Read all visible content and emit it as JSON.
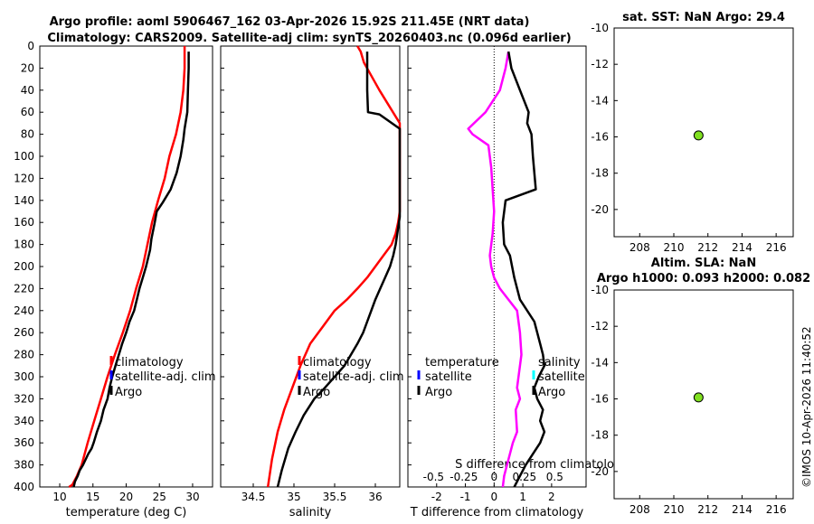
{
  "title_line1": "Argo profile: aoml 5906467_162 03-Apr-2026 15.92S 211.45E (NRT data)",
  "title_line2": "Climatology: CARS2009. Satellite-adj clim: synTS_20260403.nc (0.096d earlier)",
  "timestamp": "©IMOS 10-Apr-2026 11:40:52",
  "colors": {
    "climatology": "#ff0000",
    "satellite": "#0000ff",
    "argo": "#000000",
    "t_diff": "#ff00ff",
    "s_diff": "#00ffff",
    "marker": "#80e020"
  },
  "chart_data": [
    {
      "id": "temperature",
      "type": "line",
      "xlabel": "temperature (deg C)",
      "ylabel": "",
      "xlim": [
        7,
        33
      ],
      "ylim": [
        400,
        0
      ],
      "xticks": [
        10,
        15,
        20,
        25,
        30
      ],
      "yticks": [
        0,
        20,
        40,
        60,
        80,
        100,
        120,
        140,
        160,
        180,
        200,
        220,
        240,
        260,
        280,
        300,
        320,
        340,
        360,
        380,
        400
      ],
      "legend": [
        "climatology",
        "satellite-adj. clim",
        "Argo"
      ],
      "series": [
        {
          "name": "climatology",
          "color": "#ff0000",
          "x": [
            28.8,
            28.8,
            28.6,
            28.2,
            27.5,
            26.5,
            25.8,
            24.8,
            23.9,
            23.2,
            22.5,
            21.5,
            20.6,
            19.5,
            18.3,
            17.2,
            16.2,
            15.2,
            14.2,
            13.3,
            12.6,
            11.9,
            11.4
          ],
          "y": [
            0,
            20,
            40,
            60,
            80,
            100,
            120,
            140,
            160,
            180,
            200,
            220,
            240,
            260,
            280,
            300,
            320,
            340,
            360,
            380,
            390,
            398,
            400
          ]
        },
        {
          "name": "Argo",
          "color": "#000000",
          "x": [
            29.4,
            29.4,
            29.3,
            29.2,
            28.8,
            28.6,
            28.2,
            27.6,
            26.7,
            25.5,
            24.6,
            24.3,
            23.8,
            23.6,
            23.0,
            22.5,
            22.0,
            21.6,
            21.2,
            20.5,
            20.0,
            19.4,
            18.9,
            18.4,
            17.9,
            17.5,
            17.2,
            16.6,
            16.2,
            15.6,
            15.1,
            14.8,
            14.3,
            13.9,
            13.5,
            13.0,
            12.7,
            12.3,
            12.1
          ],
          "y": [
            5,
            20,
            40,
            60,
            75,
            85,
            100,
            115,
            130,
            142,
            150,
            160,
            175,
            185,
            200,
            210,
            220,
            230,
            240,
            250,
            260,
            270,
            280,
            290,
            300,
            310,
            320,
            330,
            340,
            350,
            360,
            365,
            370,
            375,
            380,
            385,
            390,
            395,
            400
          ]
        }
      ]
    },
    {
      "id": "salinity",
      "type": "line",
      "xlabel": "salinity",
      "ylabel": "",
      "xlim": [
        34.1,
        36.3
      ],
      "ylim": [
        400,
        0
      ],
      "xticks": [
        34.5,
        35,
        35.5,
        36
      ],
      "xtick_labels": [
        "34.5",
        "35",
        "35.5",
        "36"
      ],
      "legend": [
        "climatology",
        "satellite-adj. clim",
        "Argo"
      ],
      "series": [
        {
          "name": "climatology",
          "color": "#ff0000",
          "x": [
            35.78,
            35.82,
            35.84,
            35.86,
            36.05,
            36.3,
            36.3,
            36.28,
            36.25,
            36.2,
            36.1,
            36.0,
            35.9,
            35.78,
            35.65,
            35.5,
            35.35,
            35.2,
            35.08,
            34.98,
            34.88,
            34.8,
            34.73,
            34.68
          ],
          "y": [
            0,
            5,
            10,
            15,
            40,
            70,
            150,
            160,
            170,
            180,
            190,
            200,
            210,
            220,
            230,
            240,
            255,
            270,
            290,
            310,
            330,
            350,
            375,
            400
          ]
        },
        {
          "name": "Argo",
          "color": "#000000",
          "x": [
            35.9,
            35.9,
            35.9,
            35.91,
            36.05,
            36.3,
            36.3,
            36.28,
            36.25,
            36.22,
            36.18,
            36.12,
            36.06,
            36.0,
            35.95,
            35.9,
            35.85,
            35.78,
            35.7,
            35.62,
            35.5,
            35.38,
            35.25,
            35.12,
            35.02,
            34.93,
            34.85,
            34.8
          ],
          "y": [
            5,
            20,
            40,
            60,
            62,
            75,
            155,
            165,
            180,
            190,
            200,
            210,
            220,
            230,
            240,
            250,
            260,
            270,
            280,
            290,
            300,
            310,
            320,
            335,
            350,
            365,
            385,
            400
          ]
        }
      ]
    },
    {
      "id": "difference",
      "type": "line",
      "xlabel": "T difference from climatology",
      "top_axis_label": "S difference from climatology",
      "xlim": [
        -3,
        3.2
      ],
      "ylim": [
        400,
        0
      ],
      "xticks": [
        -2,
        -1,
        0,
        1,
        2
      ],
      "xtick_labels": [
        "-2",
        "-1",
        "0",
        "1",
        "2"
      ],
      "s_ticks": [
        -0.5,
        -0.25,
        0,
        0.25,
        0.5
      ],
      "s_tick_labels": [
        "-0.5",
        "-0.25",
        "0",
        "0.25",
        "0.5"
      ],
      "legend_t": [
        "temperature",
        "satellite",
        "Argo"
      ],
      "legend_s": [
        "salinity",
        "satellite",
        "Argo"
      ],
      "series": [
        {
          "name": "T difference (Argo - climatology)",
          "color": "#ff00ff",
          "x": [
            0.5,
            0.4,
            0.2,
            -0.3,
            -0.9,
            -0.75,
            -0.2,
            -0.1,
            -0.05,
            0.0,
            -0.05,
            -0.15,
            -0.1,
            0.0,
            0.2,
            0.5,
            0.8,
            0.9,
            0.95,
            0.9,
            0.85,
            0.8,
            0.9,
            0.75,
            0.8,
            0.65,
            0.55,
            0.45,
            0.35,
            0.3
          ],
          "y": [
            5,
            20,
            40,
            60,
            75,
            80,
            90,
            110,
            130,
            150,
            170,
            190,
            200,
            210,
            220,
            230,
            240,
            260,
            280,
            290,
            300,
            310,
            320,
            330,
            350,
            360,
            370,
            380,
            390,
            400
          ]
        },
        {
          "name": "T difference (Argo - satellite)",
          "color": "#000000",
          "x": [
            0.5,
            0.6,
            0.9,
            1.2,
            1.15,
            1.3,
            1.35,
            1.45,
            0.4,
            0.3,
            0.35,
            0.55,
            0.7,
            0.9,
            1.4,
            1.5,
            1.6,
            1.7,
            1.75,
            1.55,
            1.4,
            1.5,
            1.7,
            1.6,
            1.75,
            1.6,
            1.35,
            1.1,
            0.9,
            0.7
          ],
          "y": [
            5,
            20,
            40,
            60,
            70,
            80,
            100,
            130,
            140,
            160,
            180,
            190,
            210,
            230,
            250,
            260,
            270,
            280,
            290,
            300,
            310,
            320,
            330,
            340,
            350,
            360,
            370,
            380,
            390,
            400
          ]
        },
        {
          "name": "S difference (Argo - climatology)",
          "color": "#00ffff",
          "x": [],
          "y": []
        }
      ]
    },
    {
      "id": "sst_map",
      "type": "scatter",
      "title": "sat. SST: NaN Argo: 29.4",
      "xlim": [
        206.5,
        217
      ],
      "ylim": [
        -21.5,
        -10
      ],
      "xticks": [
        208,
        210,
        212,
        214,
        216
      ],
      "xtick_labels": [
        "208",
        "210",
        "212",
        "214",
        "216"
      ],
      "yticks": [
        -10,
        -12,
        -14,
        -16,
        -18,
        -20
      ],
      "ytick_labels": [
        "-10",
        "-12",
        "-14",
        "-16",
        "-18",
        "-20"
      ],
      "points": [
        {
          "lon": 211.45,
          "lat": -15.92
        }
      ]
    },
    {
      "id": "sla_map",
      "type": "scatter",
      "title": "Altim. SLA: NaN",
      "title2": "Argo h1000: 0.093 h2000: 0.082",
      "xlim": [
        206.5,
        217
      ],
      "ylim": [
        -21.5,
        -10
      ],
      "xticks": [
        208,
        210,
        212,
        214,
        216
      ],
      "xtick_labels": [
        "208",
        "210",
        "212",
        "214",
        "216"
      ],
      "yticks": [
        -10,
        -12,
        -14,
        -16,
        -18,
        -20
      ],
      "ytick_labels": [
        "-10",
        "-12",
        "-14",
        "-16",
        "-18",
        "-20"
      ],
      "points": [
        {
          "lon": 211.45,
          "lat": -15.92
        }
      ]
    }
  ]
}
